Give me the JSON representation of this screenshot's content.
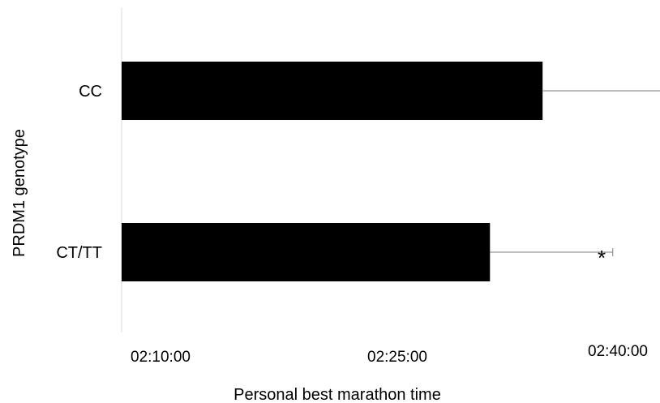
{
  "chart_data": {
    "type": "bar",
    "orientation": "horizontal",
    "categories": [
      "CC",
      "CT/TT"
    ],
    "values": [
      "02:34:00",
      "02:31:00"
    ],
    "error_upper": [
      "02:42:00",
      "02:38:00"
    ],
    "annotations": [
      {
        "category": "CT/TT",
        "text": "*"
      }
    ],
    "xlabel": "Personal best marathon time",
    "ylabel": "PRDM1 genotype",
    "xlim": [
      "02:10:00",
      "02:40:00"
    ],
    "xticks": [
      "02:10:00",
      "02:25:00",
      "02:40:00"
    ],
    "bar_color": "#000000",
    "grid": false,
    "legend": "none"
  }
}
